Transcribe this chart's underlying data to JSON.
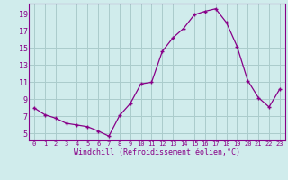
{
  "x": [
    0,
    1,
    2,
    3,
    4,
    5,
    6,
    7,
    8,
    9,
    10,
    11,
    12,
    13,
    14,
    15,
    16,
    17,
    18,
    19,
    20,
    21,
    22,
    23
  ],
  "y": [
    8.0,
    7.2,
    6.8,
    6.2,
    6.0,
    5.8,
    5.3,
    4.7,
    7.1,
    8.5,
    10.8,
    11.0,
    14.6,
    16.2,
    17.3,
    18.9,
    19.3,
    19.6,
    18.0,
    15.2,
    11.2,
    9.2,
    8.1,
    10.2
  ],
  "xlabel": "Windchill (Refroidissement éolien,°C)",
  "xlim": [
    -0.5,
    23.5
  ],
  "ylim": [
    4.2,
    20.2
  ],
  "yticks": [
    5,
    7,
    9,
    11,
    13,
    15,
    17,
    19
  ],
  "xticks": [
    0,
    1,
    2,
    3,
    4,
    5,
    6,
    7,
    8,
    9,
    10,
    11,
    12,
    13,
    14,
    15,
    16,
    17,
    18,
    19,
    20,
    21,
    22,
    23
  ],
  "line_color": "#880088",
  "marker": "+",
  "bg_color": "#d0ecec",
  "grid_color": "#aacccc",
  "label_color": "#880088",
  "font_family": "monospace"
}
